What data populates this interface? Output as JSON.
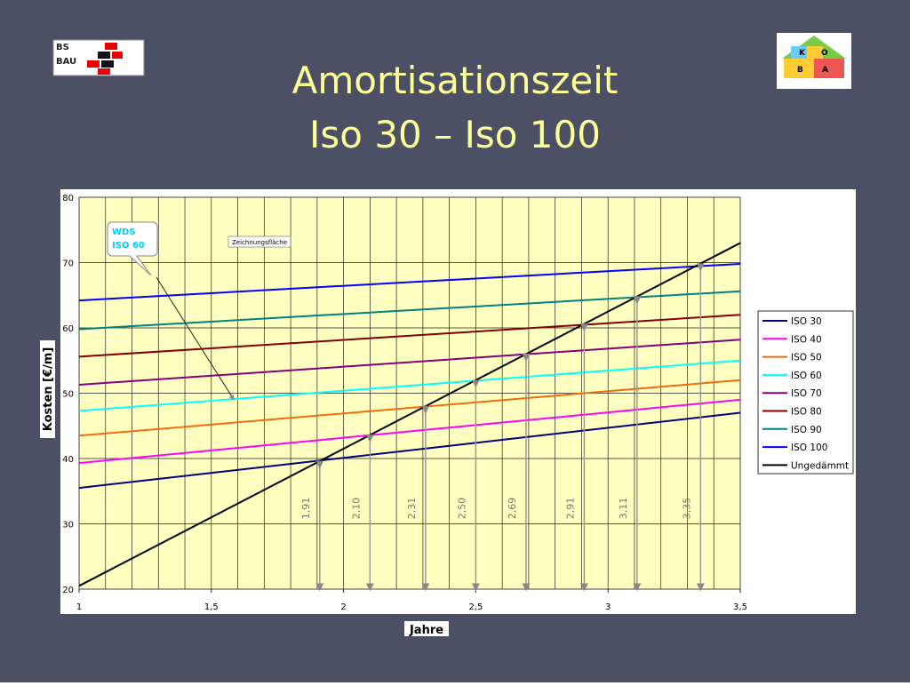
{
  "logos": {
    "left": [
      "BS",
      "BAU"
    ],
    "right": [
      "K",
      "O",
      "B",
      "A"
    ]
  },
  "chart_data": {
    "type": "line",
    "title": [
      "Amortisationszeit",
      "Iso 30 – Iso 100"
    ],
    "x_label": "Jahre",
    "y_label": "Kosten [€/m]",
    "x": [
      1,
      3.5
    ],
    "xlim": [
      1,
      3.5
    ],
    "ylim": [
      20,
      80
    ],
    "xticks": [
      1,
      {
        "value": 1.5,
        "label": "1,5"
      },
      2,
      {
        "value": 2.5,
        "label": "2,5"
      },
      3,
      {
        "value": 3.5,
        "label": "3,5"
      }
    ],
    "yticks": [
      20,
      30,
      40,
      50,
      60,
      70,
      80
    ],
    "x_minor_step": 0.1,
    "grid": true,
    "legend": "right",
    "series": [
      {
        "name": "ISO 30",
        "color": "#000080",
        "values": [
          35.5,
          47
        ]
      },
      {
        "name": "ISO 40",
        "color": "#ff00ff",
        "values": [
          39.3,
          49
        ]
      },
      {
        "name": "ISO 50",
        "color": "#f26b0a",
        "values": [
          43.5,
          52
        ]
      },
      {
        "name": "ISO 60",
        "color": "#00ffff",
        "values": [
          47.3,
          55
        ]
      },
      {
        "name": "ISO 70",
        "color": "#800080",
        "values": [
          51.3,
          58.2
        ]
      },
      {
        "name": "ISO 80",
        "color": "#800000",
        "values": [
          55.6,
          62
        ]
      },
      {
        "name": "ISO 90",
        "color": "#008080",
        "values": [
          59.8,
          65.6
        ]
      },
      {
        "name": "ISO 100",
        "color": "#0000ff",
        "values": [
          64.2,
          69.8
        ]
      },
      {
        "name": "Ungedämmt",
        "color": "#000000",
        "values": [
          20.5,
          73
        ]
      }
    ],
    "markers": [
      {
        "x": 1.91,
        "y": 39.6,
        "label": "1,91"
      },
      {
        "x": 2.1,
        "y": 43.6,
        "label": "2,10"
      },
      {
        "x": 2.31,
        "y": 48,
        "label": "2,31"
      },
      {
        "x": 2.5,
        "y": 52,
        "label": "2,50"
      },
      {
        "x": 2.69,
        "y": 56,
        "label": "2,69"
      },
      {
        "x": 2.91,
        "y": 60.6,
        "label": "2,91"
      },
      {
        "x": 3.11,
        "y": 64.8,
        "label": "3,11"
      },
      {
        "x": 3.35,
        "y": 69.8,
        "label": "3,35"
      }
    ],
    "callout": [
      "WDS",
      "ISO 60"
    ],
    "tag": "Zeichnungsfläche"
  }
}
